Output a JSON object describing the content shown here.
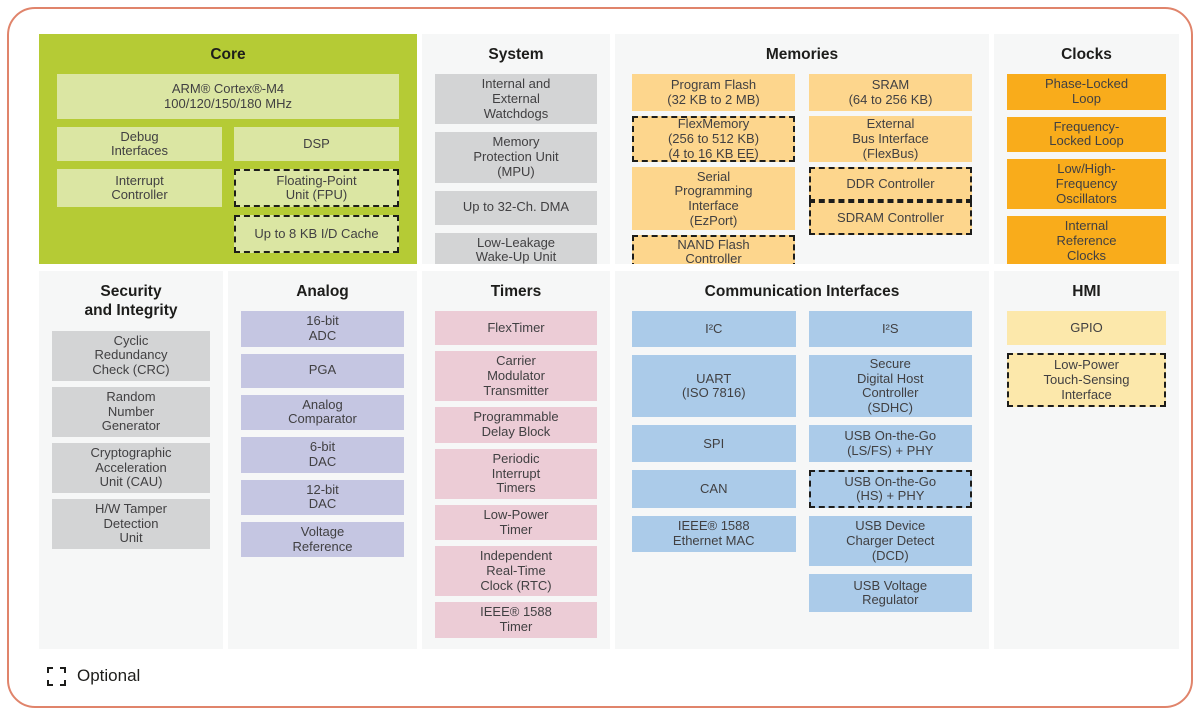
{
  "colors": {
    "border_accent": "#e0846b",
    "panel_bg": "#f6f7f7",
    "core_bg": "#b5cb35",
    "core_block": "#dbe6a3",
    "gray_block": "#d3d4d5",
    "memories_block": "#fdd68d",
    "clocks_block": "#f9ac1b",
    "analog_block": "#c5c6e2",
    "timers_block": "#ecccd6",
    "comm_block": "#abcbe9",
    "hmi_block": "#fce8ab",
    "block_text": "#414042",
    "title_text": "#1d1d1b"
  },
  "legend": {
    "label": "Optional"
  },
  "sections": {
    "core": {
      "title": "Core",
      "blocks": [
        {
          "label": "ARM® Cortex®-M4\n100/120/150/180 MHz"
        },
        {
          "label": "Debug\nInterfaces"
        },
        {
          "label": "DSP"
        },
        {
          "label": "Interrupt\nController"
        },
        {
          "label": "Floating-Point\nUnit (FPU)",
          "optional": true
        },
        {
          "label": "Up to 8 KB I/D Cache",
          "optional": true
        }
      ]
    },
    "system": {
      "title": "System",
      "blocks": [
        {
          "label": "Internal and\nExternal\nWatchdogs"
        },
        {
          "label": "Memory\nProtection Unit\n(MPU)"
        },
        {
          "label": "Up to 32-Ch. DMA"
        },
        {
          "label": "Low-Leakage\nWake-Up Unit"
        }
      ]
    },
    "memories": {
      "title": "Memories",
      "blocks": [
        {
          "label": "Program Flash\n(32 KB to 2 MB)"
        },
        {
          "label": "SRAM\n(64 to 256 KB)"
        },
        {
          "label": "FlexMemory\n(256 to 512 KB)\n(4 to 16 KB EE)",
          "optional": true
        },
        {
          "label": "External\nBus Interface\n(FlexBus)"
        },
        {
          "label": "Serial\nProgramming\nInterface\n(EzPort)"
        },
        {
          "label": "DDR Controller",
          "optional": true
        },
        {
          "label": "SDRAM Controller",
          "optional": true
        },
        {
          "label": "NAND Flash\nController",
          "optional": true
        }
      ]
    },
    "clocks": {
      "title": "Clocks",
      "blocks": [
        {
          "label": "Phase-Locked\nLoop"
        },
        {
          "label": "Frequency-\nLocked Loop"
        },
        {
          "label": "Low/High-\nFrequency\nOscillators"
        },
        {
          "label": "Internal\nReference\nClocks"
        }
      ]
    },
    "security": {
      "title": "Security\nand Integrity",
      "blocks": [
        {
          "label": "Cyclic\nRedundancy\nCheck (CRC)"
        },
        {
          "label": "Random\nNumber\nGenerator"
        },
        {
          "label": "Cryptographic\nAcceleration\nUnit (CAU)"
        },
        {
          "label": "H/W Tamper\nDetection\nUnit"
        }
      ]
    },
    "analog": {
      "title": "Analog",
      "blocks": [
        {
          "label": "16-bit\nADC"
        },
        {
          "label": "PGA"
        },
        {
          "label": "Analog\nComparator"
        },
        {
          "label": "6-bit\nDAC"
        },
        {
          "label": "12-bit\nDAC"
        },
        {
          "label": "Voltage\nReference"
        }
      ]
    },
    "timers": {
      "title": "Timers",
      "blocks": [
        {
          "label": "FlexTimer"
        },
        {
          "label": "Carrier\nModulator\nTransmitter"
        },
        {
          "label": "Programmable\nDelay Block"
        },
        {
          "label": "Periodic\nInterrupt\nTimers"
        },
        {
          "label": "Low-Power\nTimer"
        },
        {
          "label": "Independent\nReal-Time\nClock (RTC)"
        },
        {
          "label": "IEEE® 1588\nTimer"
        }
      ]
    },
    "comm": {
      "title": "Communication Interfaces",
      "blocks": [
        {
          "label": "I²C"
        },
        {
          "label": "I²S"
        },
        {
          "label": "UART\n(ISO 7816)"
        },
        {
          "label": "Secure\nDigital Host\nController\n(SDHC)"
        },
        {
          "label": "SPI"
        },
        {
          "label": "USB On-the-Go\n(LS/FS) + PHY"
        },
        {
          "label": "CAN"
        },
        {
          "label": "USB On-the-Go\n(HS) + PHY",
          "optional": true
        },
        {
          "label": "IEEE® 1588\nEthernet MAC"
        },
        {
          "label": "USB Device\nCharger Detect\n(DCD)"
        },
        {
          "label": "USB Voltage\nRegulator"
        }
      ]
    },
    "hmi": {
      "title": "HMI",
      "blocks": [
        {
          "label": "GPIO"
        },
        {
          "label": "Low-Power\nTouch-Sensing\nInterface",
          "optional": true
        }
      ]
    }
  }
}
